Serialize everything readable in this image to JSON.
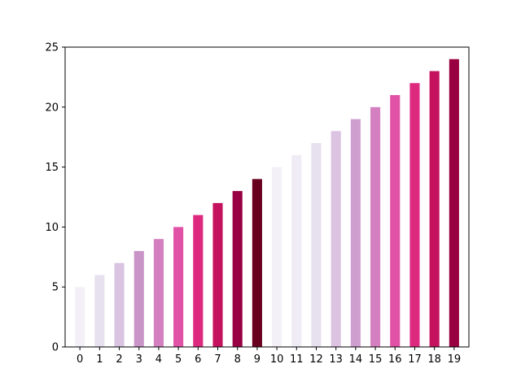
{
  "chart_data": {
    "type": "bar",
    "title": "",
    "xlabel": "",
    "ylabel": "",
    "categories": [
      "0",
      "1",
      "2",
      "3",
      "4",
      "5",
      "6",
      "7",
      "8",
      "9",
      "10",
      "11",
      "12",
      "13",
      "14",
      "15",
      "16",
      "17",
      "18",
      "19"
    ],
    "values": [
      5,
      6,
      7,
      8,
      9,
      10,
      11,
      12,
      13,
      14,
      15,
      16,
      17,
      18,
      19,
      20,
      21,
      22,
      23,
      24
    ],
    "colors": [
      "#f4f0f7",
      "#e7e1ef",
      "#d9c4e2",
      "#c994c7",
      "#d480c0",
      "#e151a6",
      "#dd2a7f",
      "#c4125e",
      "#980043",
      "#67001f",
      "#f4f0f7",
      "#f0ecf5",
      "#e7e1ef",
      "#dbc3e1",
      "#cf9fd0",
      "#d480c0",
      "#e151a6",
      "#dd2a7f",
      "#c4125e",
      "#98003f"
    ],
    "ylim": [
      0,
      25
    ],
    "yticks": [
      "0",
      "5",
      "10",
      "15",
      "20",
      "25"
    ],
    "grid": false,
    "legend": "none"
  }
}
